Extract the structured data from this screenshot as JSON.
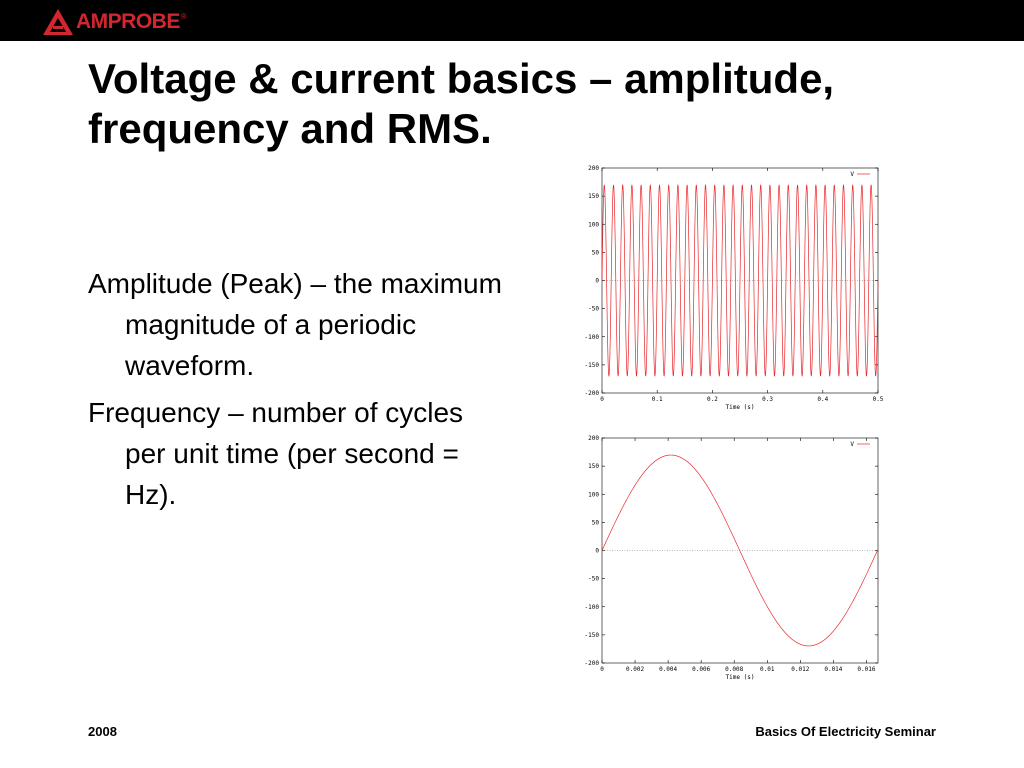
{
  "brand": {
    "name": "AMPROBE",
    "trademark": "®",
    "color": "#d22630"
  },
  "slide": {
    "title_lines": [
      "Voltage & current basics – amplitude,",
      "frequency and RMS."
    ],
    "bullets": [
      "Amplitude (Peak) – the maximum magnitude of a periodic waveform.",
      "Frequency – number of cycles per unit time (per second = Hz)."
    ]
  },
  "footer": {
    "left": "2008",
    "right": "Basics Of Electricity Seminar"
  },
  "chart_data": [
    {
      "type": "line",
      "title": "",
      "xlabel": "Time (s)",
      "ylabel": "",
      "xlim": [
        0,
        0.5
      ],
      "ylim": [
        -200,
        200
      ],
      "xticks": [
        "0",
        "0.1",
        "0.2",
        "0.3",
        "0.4",
        "0.5"
      ],
      "yticks": [
        "200",
        "150",
        "100",
        "50",
        "0",
        "-50",
        "-100",
        "-150",
        "-200"
      ],
      "grid": false,
      "zero_line": true,
      "legend": "top-right",
      "series": [
        {
          "name": "V",
          "color": "#e8262a",
          "function": "sine",
          "amplitude": 169.7,
          "frequency_hz": 60,
          "phase": 0
        }
      ]
    },
    {
      "type": "line",
      "title": "",
      "xlabel": "Time (s)",
      "ylabel": "",
      "xlim": [
        0,
        0.0167
      ],
      "ylim": [
        -200,
        200
      ],
      "xticks": [
        "0",
        "0.002",
        "0.004",
        "0.006",
        "0.008",
        "0.01",
        "0.012",
        "0.014",
        "0.016"
      ],
      "yticks": [
        "200",
        "150",
        "100",
        "50",
        "0",
        "-50",
        "-100",
        "-150",
        "-200"
      ],
      "grid": false,
      "zero_line": true,
      "legend": "top-right",
      "series": [
        {
          "name": "V",
          "color": "#e8262a",
          "function": "sine",
          "amplitude": 169.7,
          "frequency_hz": 60,
          "phase": 0
        }
      ]
    }
  ]
}
